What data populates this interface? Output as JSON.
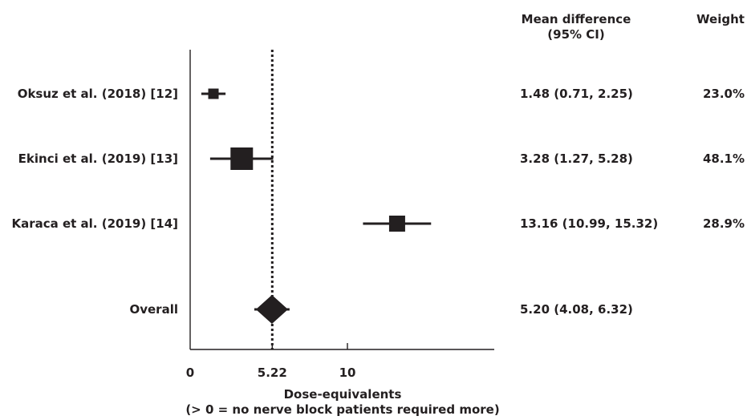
{
  "chart_data": {
    "type": "forest",
    "headers": {
      "ci_line1": "Mean difference",
      "ci_line2": "(95% CI)",
      "weight": "Weight"
    },
    "studies": [
      {
        "label": "Oksuz et al. (2018) [12]",
        "mean": 1.48,
        "lower": 0.71,
        "upper": 2.25,
        "ci_text": "1.48 (0.71, 2.25)",
        "weight_text": "23.0%",
        "weight": 23.0
      },
      {
        "label": "Ekinci et al. (2019) [13]",
        "mean": 3.28,
        "lower": 1.27,
        "upper": 5.28,
        "ci_text": "3.28 (1.27, 5.28)",
        "weight_text": "48.1%",
        "weight": 48.1
      },
      {
        "label": "Karaca et al. (2019) [14]",
        "mean": 13.16,
        "lower": 10.99,
        "upper": 15.32,
        "ci_text": "13.16 (10.99, 15.32)",
        "weight_text": "28.9%",
        "weight": 28.9
      }
    ],
    "overall": {
      "label": "Overall",
      "mean": 5.2,
      "lower": 4.08,
      "upper": 6.32,
      "ci_text": "5.20 (4.08, 6.32)"
    },
    "reference_line": 5.22,
    "x_ticks": [
      {
        "value": 0,
        "label": "0"
      },
      {
        "value": 5.22,
        "label": "5.22"
      },
      {
        "value": 10,
        "label": "10"
      }
    ],
    "xlim": [
      0,
      19.3
    ],
    "xlabel_line1": "Dose-equivalents",
    "xlabel_line2": "(> 0 = no nerve block patients required more)",
    "colors": {
      "ink": "#231f20",
      "background": "#ffffff"
    }
  }
}
